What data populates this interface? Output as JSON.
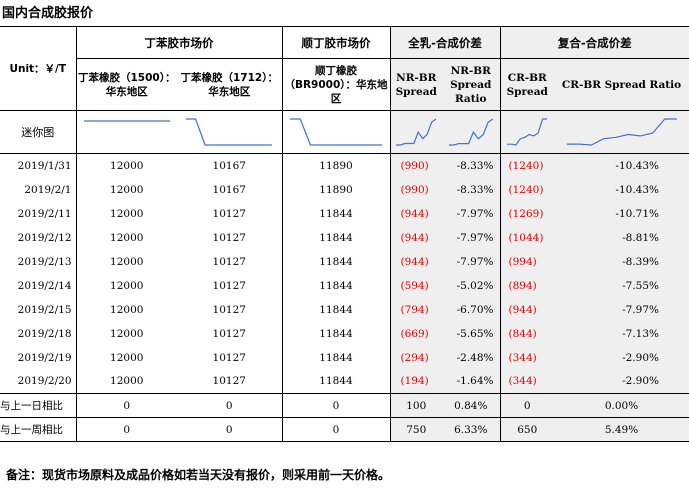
{
  "title": "国内合成胶报价",
  "header": {
    "unit": "Unit：￥/T",
    "group_bd": "丁苯胶市场价",
    "group_bb": "顺丁胶市场价",
    "group_nr": "全乳-合成价差",
    "group_cr": "复合-合成价差",
    "col_1500": "丁苯橡胶（1500）：华东地区",
    "col_1712": "丁苯橡胶（1712）：华东地区",
    "col_br9000": "顺丁橡胶（BR9000）：华东地区",
    "col_nr_spread": "NR-BR Spread",
    "col_nr_ratio": "NR-BR Spread Ratio",
    "col_cr_spread": "CR-BR Spread",
    "col_cr_ratio": "CR-BR Spread Ratio",
    "mini_label": "迷你图"
  },
  "rows": [
    {
      "date": "2019/1/31",
      "sbr1500": "12000",
      "sbr1712": "10167",
      "br9000": "11890",
      "nr_spread": "(990)",
      "nr_ratio": "-8.33%",
      "cr_spread": "(1240)",
      "cr_ratio": "-10.43%"
    },
    {
      "date": "2019/2/1",
      "sbr1500": "12000",
      "sbr1712": "10167",
      "br9000": "11890",
      "nr_spread": "(990)",
      "nr_ratio": "-8.33%",
      "cr_spread": "(1240)",
      "cr_ratio": "-10.43%"
    },
    {
      "date": "2019/2/11",
      "sbr1500": "12000",
      "sbr1712": "10127",
      "br9000": "11844",
      "nr_spread": "(944)",
      "nr_ratio": "-7.97%",
      "cr_spread": "(1269)",
      "cr_ratio": "-10.71%"
    },
    {
      "date": "2019/2/12",
      "sbr1500": "12000",
      "sbr1712": "10127",
      "br9000": "11844",
      "nr_spread": "(944)",
      "nr_ratio": "-7.97%",
      "cr_spread": "(1044)",
      "cr_ratio": "-8.81%"
    },
    {
      "date": "2019/2/13",
      "sbr1500": "12000",
      "sbr1712": "10127",
      "br9000": "11844",
      "nr_spread": "(944)",
      "nr_ratio": "-7.97%",
      "cr_spread": "(994)",
      "cr_ratio": "-8.39%"
    },
    {
      "date": "2019/2/14",
      "sbr1500": "12000",
      "sbr1712": "10127",
      "br9000": "11844",
      "nr_spread": "(594)",
      "nr_ratio": "-5.02%",
      "cr_spread": "(894)",
      "cr_ratio": "-7.55%"
    },
    {
      "date": "2019/2/15",
      "sbr1500": "12000",
      "sbr1712": "10127",
      "br9000": "11844",
      "nr_spread": "(794)",
      "nr_ratio": "-6.70%",
      "cr_spread": "(944)",
      "cr_ratio": "-7.97%"
    },
    {
      "date": "2019/2/18",
      "sbr1500": "12000",
      "sbr1712": "10127",
      "br9000": "11844",
      "nr_spread": "(669)",
      "nr_ratio": "-5.65%",
      "cr_spread": "(844)",
      "cr_ratio": "-7.13%"
    },
    {
      "date": "2019/2/19",
      "sbr1500": "12000",
      "sbr1712": "10127",
      "br9000": "11844",
      "nr_spread": "(294)",
      "nr_ratio": "-2.48%",
      "cr_spread": "(344)",
      "cr_ratio": "-2.90%"
    },
    {
      "date": "2019/2/20",
      "sbr1500": "12000",
      "sbr1712": "10127",
      "br9000": "11844",
      "nr_spread": "(194)",
      "nr_ratio": "-1.64%",
      "cr_spread": "(344)",
      "cr_ratio": "-2.90%"
    }
  ],
  "compare": [
    {
      "label": "与上一日相比",
      "sbr1500": "0",
      "sbr1712": "0",
      "br9000": "0",
      "nr_spread": "100",
      "nr_ratio": "0.84%",
      "cr_spread": "0",
      "cr_ratio": "0.00%"
    },
    {
      "label": "与上一周相比",
      "sbr1500": "0",
      "sbr1712": "0",
      "br9000": "0",
      "nr_spread": "750",
      "nr_ratio": "6.33%",
      "cr_spread": "650",
      "cr_ratio": "5.49%"
    }
  ],
  "sparklines": {
    "sbr1500": [
      12000,
      12000,
      12000,
      12000,
      12000,
      12000,
      12000,
      12000,
      12000,
      12000
    ],
    "sbr1712": [
      10167,
      10167,
      10127,
      10127,
      10127,
      10127,
      10127,
      10127,
      10127,
      10127
    ],
    "br9000": [
      11890,
      11890,
      11844,
      11844,
      11844,
      11844,
      11844,
      11844,
      11844,
      11844
    ],
    "nr_spread": [
      -990,
      -990,
      -944,
      -944,
      -944,
      -594,
      -794,
      -669,
      -294,
      -194
    ],
    "nr_ratio": [
      -8.33,
      -8.33,
      -7.97,
      -7.97,
      -7.97,
      -5.02,
      -6.7,
      -5.65,
      -2.48,
      -1.64
    ],
    "cr_spread": [
      -1240,
      -1240,
      -1269,
      -1044,
      -994,
      -894,
      -944,
      -844,
      -344,
      -344
    ],
    "cr_ratio": [
      -10.43,
      -10.43,
      -10.71,
      -8.81,
      -8.39,
      -7.55,
      -7.97,
      -7.13,
      -2.9,
      -2.9
    ]
  },
  "colors": {
    "negative": "#e00000",
    "sparkline": "#4472c4",
    "gray_fill": "#efefef"
  },
  "note": "备注：现货市场原料及成品价格如若当天没有报价，则采用前一天价格。"
}
